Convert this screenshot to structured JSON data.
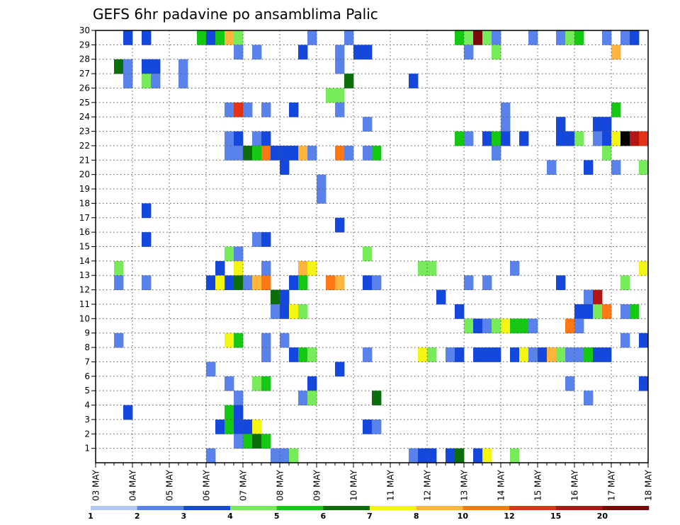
{
  "chart_data": {
    "type": "heatmap",
    "title": "GEFS 6hr padavine po ansamblima Palic",
    "x_labels": [
      "03 MAY",
      "04 MAY",
      "05 MAY",
      "06 MAY",
      "07 MAY",
      "08 MAY",
      "09 MAY",
      "10 MAY",
      "11 MAY",
      "12 MAY",
      "13 MAY",
      "14 MAY",
      "15 MAY",
      "16 MAY",
      "17 MAY",
      "18 MAY"
    ],
    "x_steps_per_day": 4,
    "x_range_steps": [
      0,
      60
    ],
    "y_range": [
      0,
      30
    ],
    "y_ticks": [
      1,
      2,
      3,
      4,
      5,
      6,
      7,
      8,
      9,
      10,
      11,
      12,
      13,
      14,
      15,
      16,
      17,
      18,
      19,
      20,
      21,
      22,
      23,
      24,
      25,
      26,
      27,
      28,
      29,
      30
    ],
    "grid": true,
    "legend": {
      "position": "bottom",
      "labels": [
        "1",
        "2",
        "3",
        "4",
        "5",
        "6",
        "7",
        "8",
        "10",
        "12",
        "15",
        "20"
      ],
      "colors": [
        "#b4c8f5",
        "#5a82eb",
        "#1447dc",
        "#78eb5a",
        "#14c814",
        "#0a6e0a",
        "#f5f514",
        "#ffb43c",
        "#ff7814",
        "#e63214",
        "#b41414",
        "#780a0a"
      ]
    },
    "cells": [
      [
        30,
        3,
        2
      ],
      [
        30,
        5,
        2
      ],
      [
        30,
        11,
        4
      ],
      [
        30,
        12,
        2
      ],
      [
        30,
        13,
        4
      ],
      [
        30,
        14,
        7
      ],
      [
        30,
        15,
        3
      ],
      [
        30,
        23,
        1
      ],
      [
        30,
        27,
        1
      ],
      [
        30,
        39,
        4
      ],
      [
        30,
        40,
        3
      ],
      [
        30,
        41,
        11
      ],
      [
        30,
        42,
        3
      ],
      [
        30,
        43,
        1
      ],
      [
        30,
        47,
        1
      ],
      [
        30,
        50,
        1
      ],
      [
        30,
        51,
        3
      ],
      [
        30,
        52,
        4
      ],
      [
        30,
        55,
        1
      ],
      [
        30,
        57,
        1
      ],
      [
        30,
        58,
        2
      ],
      [
        29,
        15,
        1
      ],
      [
        29,
        17,
        1
      ],
      [
        29,
        22,
        2
      ],
      [
        29,
        26,
        1
      ],
      [
        29,
        28,
        2
      ],
      [
        29,
        29,
        2
      ],
      [
        29,
        40,
        1
      ],
      [
        29,
        43,
        3
      ],
      [
        29,
        56,
        7
      ],
      [
        28,
        2,
        5
      ],
      [
        28,
        3,
        1
      ],
      [
        28,
        5,
        2
      ],
      [
        28,
        6,
        2
      ],
      [
        28,
        9,
        1
      ],
      [
        28,
        26,
        1
      ],
      [
        27,
        3,
        1
      ],
      [
        27,
        5,
        3
      ],
      [
        27,
        6,
        1
      ],
      [
        27,
        9,
        1
      ],
      [
        27,
        27,
        5
      ],
      [
        27,
        34,
        2
      ],
      [
        26,
        25,
        3
      ],
      [
        26,
        26,
        3
      ],
      [
        25,
        14,
        1
      ],
      [
        25,
        15,
        9
      ],
      [
        25,
        16,
        1
      ],
      [
        25,
        18,
        1
      ],
      [
        25,
        21,
        2
      ],
      [
        25,
        26,
        1
      ],
      [
        25,
        44,
        1
      ],
      [
        25,
        56,
        4
      ],
      [
        24,
        29,
        1
      ],
      [
        24,
        44,
        1
      ],
      [
        24,
        50,
        2
      ],
      [
        24,
        54,
        2
      ],
      [
        24,
        55,
        2
      ],
      [
        23,
        14,
        1
      ],
      [
        23,
        15,
        2
      ],
      [
        23,
        17,
        1
      ],
      [
        23,
        18,
        2
      ],
      [
        23,
        39,
        4
      ],
      [
        23,
        40,
        1
      ],
      [
        23,
        42,
        2
      ],
      [
        23,
        43,
        4
      ],
      [
        23,
        44,
        2
      ],
      [
        23,
        46,
        2
      ],
      [
        23,
        50,
        2
      ],
      [
        23,
        51,
        2
      ],
      [
        23,
        52,
        3
      ],
      [
        23,
        54,
        1
      ],
      [
        23,
        55,
        2
      ],
      [
        23,
        56,
        6
      ],
      [
        23,
        57,
        12
      ],
      [
        23,
        58,
        10
      ],
      [
        23,
        59,
        9
      ],
      [
        22,
        14,
        1
      ],
      [
        22,
        15,
        1
      ],
      [
        22,
        16,
        5
      ],
      [
        22,
        17,
        4
      ],
      [
        22,
        18,
        8
      ],
      [
        22,
        19,
        2
      ],
      [
        22,
        20,
        2
      ],
      [
        22,
        21,
        2
      ],
      [
        22,
        22,
        7
      ],
      [
        22,
        23,
        1
      ],
      [
        22,
        26,
        8
      ],
      [
        22,
        27,
        1
      ],
      [
        22,
        29,
        1
      ],
      [
        22,
        30,
        4
      ],
      [
        22,
        43,
        1
      ],
      [
        22,
        55,
        3
      ],
      [
        21,
        20,
        2
      ],
      [
        21,
        49,
        1
      ],
      [
        21,
        53,
        2
      ],
      [
        21,
        56,
        1
      ],
      [
        21,
        59,
        3
      ],
      [
        20,
        24,
        1
      ],
      [
        19,
        24,
        1
      ],
      [
        18,
        5,
        2
      ],
      [
        17,
        26,
        2
      ],
      [
        16,
        5,
        2
      ],
      [
        16,
        17,
        1
      ],
      [
        16,
        18,
        2
      ],
      [
        15,
        14,
        3
      ],
      [
        15,
        15,
        1
      ],
      [
        15,
        29,
        3
      ],
      [
        14,
        2,
        3
      ],
      [
        14,
        13,
        2
      ],
      [
        14,
        15,
        6
      ],
      [
        14,
        18,
        1
      ],
      [
        14,
        22,
        7
      ],
      [
        14,
        23,
        6
      ],
      [
        14,
        35,
        3
      ],
      [
        14,
        36,
        3
      ],
      [
        14,
        45,
        1
      ],
      [
        14,
        59,
        6
      ],
      [
        13,
        2,
        1
      ],
      [
        13,
        5,
        1
      ],
      [
        13,
        12,
        2
      ],
      [
        13,
        13,
        6
      ],
      [
        13,
        14,
        2
      ],
      [
        13,
        15,
        5
      ],
      [
        13,
        16,
        1
      ],
      [
        13,
        17,
        7
      ],
      [
        13,
        18,
        8
      ],
      [
        13,
        21,
        2
      ],
      [
        13,
        22,
        4
      ],
      [
        13,
        25,
        8
      ],
      [
        13,
        26,
        7
      ],
      [
        13,
        29,
        2
      ],
      [
        13,
        30,
        1
      ],
      [
        13,
        40,
        1
      ],
      [
        13,
        42,
        1
      ],
      [
        13,
        50,
        2
      ],
      [
        13,
        57,
        3
      ],
      [
        12,
        19,
        5
      ],
      [
        12,
        20,
        2
      ],
      [
        12,
        37,
        2
      ],
      [
        12,
        53,
        1
      ],
      [
        12,
        54,
        10
      ],
      [
        11,
        19,
        1
      ],
      [
        11,
        20,
        2
      ],
      [
        11,
        21,
        6
      ],
      [
        11,
        22,
        3
      ],
      [
        11,
        39,
        2
      ],
      [
        11,
        52,
        2
      ],
      [
        11,
        53,
        2
      ],
      [
        11,
        54,
        3
      ],
      [
        11,
        55,
        8
      ],
      [
        11,
        57,
        1
      ],
      [
        11,
        58,
        4
      ],
      [
        10,
        40,
        3
      ],
      [
        10,
        41,
        2
      ],
      [
        10,
        42,
        1
      ],
      [
        10,
        43,
        3
      ],
      [
        10,
        44,
        6
      ],
      [
        10,
        45,
        4
      ],
      [
        10,
        46,
        4
      ],
      [
        10,
        47,
        1
      ],
      [
        10,
        51,
        8
      ],
      [
        10,
        52,
        1
      ],
      [
        9,
        2,
        1
      ],
      [
        9,
        14,
        6
      ],
      [
        9,
        15,
        4
      ],
      [
        9,
        18,
        1
      ],
      [
        9,
        20,
        1
      ],
      [
        9,
        57,
        1
      ],
      [
        9,
        59,
        2
      ],
      [
        8,
        18,
        1
      ],
      [
        8,
        21,
        2
      ],
      [
        8,
        22,
        4
      ],
      [
        8,
        23,
        3
      ],
      [
        8,
        29,
        1
      ],
      [
        8,
        35,
        6
      ],
      [
        8,
        36,
        3
      ],
      [
        8,
        38,
        1
      ],
      [
        8,
        39,
        2
      ],
      [
        8,
        41,
        2
      ],
      [
        8,
        42,
        2
      ],
      [
        8,
        43,
        2
      ],
      [
        8,
        45,
        2
      ],
      [
        8,
        46,
        6
      ],
      [
        8,
        47,
        1
      ],
      [
        8,
        48,
        2
      ],
      [
        8,
        49,
        7
      ],
      [
        8,
        50,
        3
      ],
      [
        8,
        51,
        1
      ],
      [
        8,
        52,
        1
      ],
      [
        8,
        53,
        4
      ],
      [
        8,
        54,
        2
      ],
      [
        8,
        55,
        2
      ],
      [
        7,
        12,
        1
      ],
      [
        7,
        26,
        2
      ],
      [
        6,
        14,
        1
      ],
      [
        6,
        17,
        3
      ],
      [
        6,
        18,
        4
      ],
      [
        6,
        23,
        2
      ],
      [
        6,
        51,
        1
      ],
      [
        6,
        59,
        2
      ],
      [
        5,
        15,
        1
      ],
      [
        5,
        22,
        1
      ],
      [
        5,
        23,
        3
      ],
      [
        5,
        30,
        5
      ],
      [
        5,
        53,
        1
      ],
      [
        4,
        3,
        2
      ],
      [
        4,
        14,
        4
      ],
      [
        4,
        15,
        2
      ],
      [
        3,
        13,
        2
      ],
      [
        3,
        14,
        4
      ],
      [
        3,
        15,
        2
      ],
      [
        3,
        16,
        2
      ],
      [
        3,
        17,
        6
      ],
      [
        3,
        29,
        2
      ],
      [
        3,
        30,
        1
      ],
      [
        2,
        15,
        1
      ],
      [
        2,
        16,
        4
      ],
      [
        2,
        17,
        5
      ],
      [
        2,
        18,
        4
      ],
      [
        1,
        12,
        1
      ],
      [
        1,
        19,
        1
      ],
      [
        1,
        20,
        1
      ],
      [
        1,
        21,
        3
      ],
      [
        1,
        34,
        1
      ],
      [
        1,
        35,
        2
      ],
      [
        1,
        36,
        2
      ],
      [
        1,
        38,
        2
      ],
      [
        1,
        39,
        5
      ],
      [
        1,
        41,
        2
      ],
      [
        1,
        42,
        6
      ],
      [
        1,
        45,
        3
      ]
    ]
  }
}
